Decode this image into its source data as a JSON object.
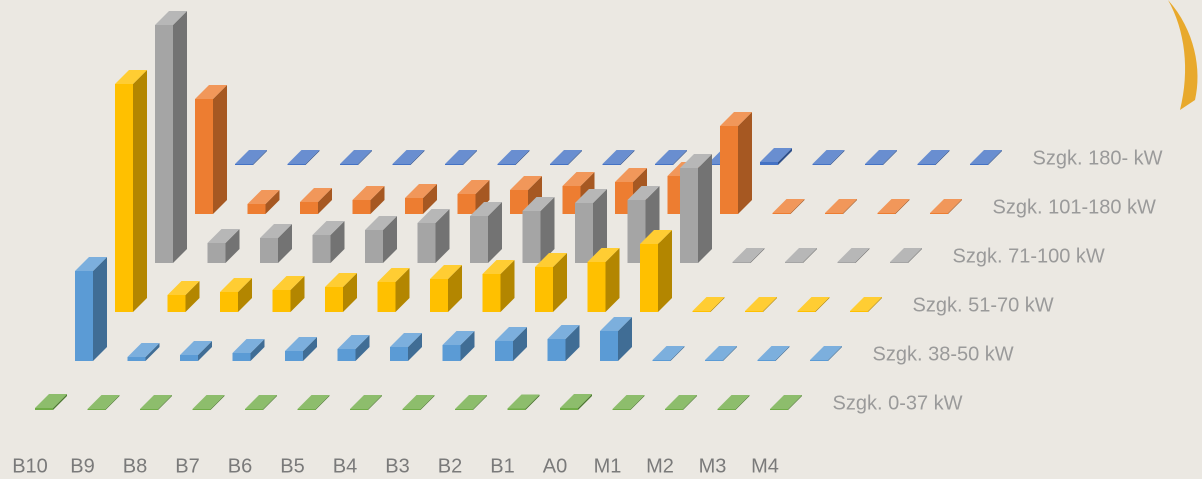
{
  "chart_data": {
    "type": "bar3d",
    "categories": [
      "B10",
      "B9",
      "B8",
      "B7",
      "B6",
      "B5",
      "B4",
      "B3",
      "B2",
      "B1",
      "A0",
      "M1",
      "M2",
      "M3",
      "M4"
    ],
    "series": [
      {
        "name": "Szgk. 0-37 kW",
        "color": "#70ad47",
        "values": [
          2,
          1,
          1,
          1,
          1,
          1,
          1,
          1,
          1,
          1.5,
          2,
          1,
          1,
          1,
          1
        ]
      },
      {
        "name": "Szgk. 38-50 kW",
        "color": "#5b9bd5",
        "values": [
          90,
          4,
          6,
          8,
          10,
          12,
          14,
          16,
          20,
          22,
          30,
          1,
          1,
          1,
          1
        ]
      },
      {
        "name": "Szgk. 51-70 kW",
        "color": "#ffc000",
        "values": [
          228,
          17,
          20,
          22,
          25,
          30,
          33,
          38,
          45,
          50,
          68,
          1,
          1,
          1,
          1
        ]
      },
      {
        "name": "Szgk. 71-100 kW",
        "color": "#a5a5a5",
        "values": [
          238,
          20,
          25,
          28,
          33,
          40,
          47,
          52,
          60,
          63,
          95,
          1,
          1,
          1,
          1
        ]
      },
      {
        "name": "Szgk. 101-180 kW",
        "color": "#ed7d31",
        "values": [
          115,
          10,
          12,
          14,
          16,
          20,
          24,
          28,
          32,
          38,
          88,
          1,
          1,
          1,
          1
        ]
      },
      {
        "name": "Szgk. 180- kW",
        "color": "#4472c4",
        "values": [
          1,
          1,
          1,
          1,
          1,
          1,
          1,
          1,
          1,
          1,
          3,
          1,
          1,
          1,
          1
        ]
      }
    ]
  }
}
